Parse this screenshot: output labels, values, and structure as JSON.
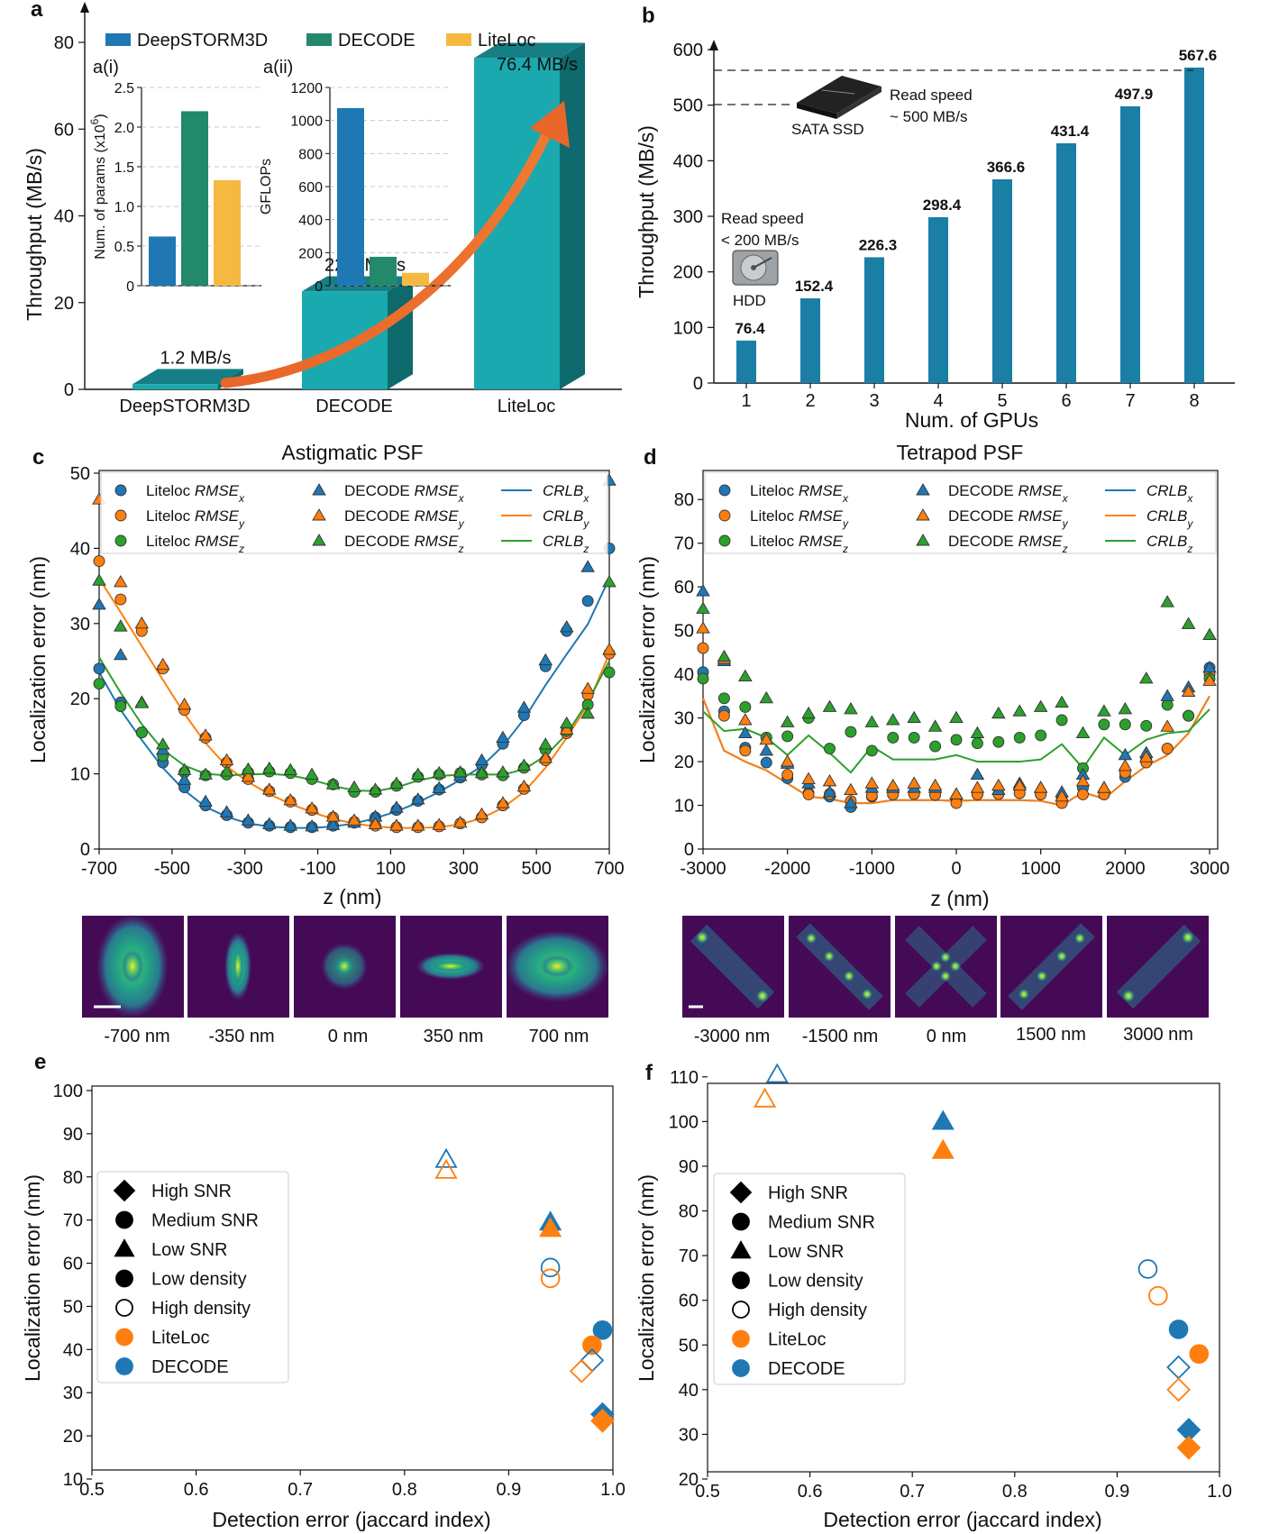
{
  "colors": {
    "blue": "#1f77b4",
    "orange": "#ff7f0e",
    "green": "#2ca02c",
    "teal": "#1aa9ae",
    "steel": "#1a7ea5",
    "dgreen": "#22896a",
    "yellow": "#f5b942",
    "arrow": "#e8662a"
  },
  "panel_labels": {
    "a": "a",
    "b": "b",
    "c": "c",
    "d": "d",
    "e": "e",
    "f": "f"
  },
  "chart_data": [
    {
      "id": "a",
      "type": "bar",
      "categories": [
        "DeepSTORM3D",
        "DECODE",
        "LiteLoc"
      ],
      "values": [
        1.2,
        22.6,
        76.4
      ],
      "value_labels": [
        "1.2 MB/s",
        "22.6 MB/s",
        "76.4 MB/s"
      ],
      "ylabel": "Throughput (MB/s)",
      "ylim": [
        0,
        80
      ],
      "yticks": [
        0,
        20,
        40,
        60,
        80
      ],
      "legend": [
        "DeepSTORM3D",
        "DECODE",
        "LiteLoc"
      ]
    },
    {
      "id": "a(i)",
      "type": "bar",
      "title": "a(i)",
      "ylabel": "Num. of params (x10",
      "ylabel_exp": "6",
      "ylabel_tail": ")",
      "values": [
        0.62,
        2.2,
        1.33
      ],
      "ylim": [
        0,
        2.5
      ],
      "yticks": [
        "0",
        "0.5",
        "1.0",
        "1.5",
        "2.0",
        "2.5"
      ]
    },
    {
      "id": "a(ii)",
      "type": "bar",
      "title": "a(ii)",
      "ylabel": "GFLOPs",
      "values": [
        1075,
        175,
        78
      ],
      "ylim": [
        0,
        1200
      ],
      "yticks": [
        "0",
        "200",
        "400",
        "600",
        "800",
        "1000",
        "1200"
      ]
    },
    {
      "id": "b",
      "type": "bar",
      "categories": [
        "1",
        "2",
        "3",
        "4",
        "5",
        "6",
        "7",
        "8"
      ],
      "values": [
        76.4,
        152.4,
        226.3,
        298.4,
        366.6,
        431.4,
        497.9,
        567.6
      ],
      "value_labels": [
        "76.4",
        "152.4",
        "226.3",
        "298.4",
        "366.6",
        "431.4",
        "497.9",
        "567.6"
      ],
      "xlabel": "Num. of GPUs",
      "ylabel": "Throughput (MB/s)",
      "ylim": [
        0,
        600
      ],
      "yticks": [
        0,
        100,
        200,
        300,
        400,
        500,
        600
      ],
      "annotations": {
        "ssd_speed": [
          "Read speed",
          "~ 500 MB/s"
        ],
        "ssd_name": "SATA SSD",
        "hdd_speed": [
          "Read speed",
          "< 200 MB/s"
        ],
        "hdd_name": "HDD"
      }
    },
    {
      "id": "c",
      "type": "line",
      "title": "Astigmatic PSF",
      "xlabel": "z (nm)",
      "ylabel": "Localization error (nm)",
      "xlim": [
        -700,
        700
      ],
      "ylim": [
        0,
        50
      ],
      "xticks": [
        -700,
        -500,
        -300,
        -100,
        100,
        300,
        500,
        700
      ],
      "yticks": [
        0,
        10,
        20,
        30,
        40,
        50
      ],
      "legend": [
        "Liteloc RMSE",
        "Liteloc RMSE",
        "Liteloc RMSE",
        "DECODE RMSE",
        "DECODE RMSE",
        "DECODE RMSE",
        "CRLB",
        "CRLB",
        "CRLB"
      ],
      "legend_sub": [
        "x",
        "y",
        "z",
        "x",
        "y",
        "z",
        "x",
        "y",
        "z"
      ],
      "x": [
        -700,
        -641,
        -583,
        -525,
        -466,
        -408,
        -350,
        -291,
        -233,
        -175,
        -116,
        -58,
        0,
        58,
        116,
        175,
        233,
        291,
        350,
        408,
        466,
        525,
        583,
        641,
        700
      ],
      "series": [
        {
          "values": [
            24,
            19.5,
            15.5,
            11.5,
            8.2,
            5.8,
            4.5,
            3.5,
            3.1,
            2.9,
            2.9,
            3.1,
            3.5,
            4.2,
            5.2,
            6.4,
            7.9,
            9.5,
            11.2,
            14,
            17.8,
            24.3,
            29,
            33,
            40
          ]
        },
        {
          "values": [
            38.3,
            33.2,
            29,
            24,
            18.5,
            14.8,
            11.5,
            9.3,
            7.7,
            6.3,
            5.2,
            4.2,
            3.6,
            3.1,
            2.9,
            2.9,
            3.0,
            3.4,
            4.2,
            5.8,
            8.0,
            11.8,
            15.4,
            20.5,
            26
          ]
        },
        {
          "values": [
            22,
            19,
            15.5,
            12.4,
            10.2,
            9.8,
            9.9,
            10.2,
            10.3,
            10.1,
            9.3,
            8.6,
            7.6,
            7.6,
            8.4,
            9.6,
            9.9,
            10.1,
            9.9,
            9.8,
            10.8,
            13.2,
            15.7,
            19.2,
            23.5
          ]
        },
        {
          "values": [
            32.5,
            25.8,
            19.5,
            13.2,
            9.2,
            6.3,
            4.9,
            3.8,
            3.3,
            3.1,
            3.0,
            3.2,
            3.5,
            4.3,
            5.5,
            6.6,
            8.1,
            9.7,
            11.8,
            14.8,
            18.8,
            25.1,
            29.5,
            37.5,
            49
          ]
        },
        {
          "values": [
            46.5,
            35.5,
            30,
            24.5,
            19.2,
            15.1,
            11.8,
            9.6,
            7.9,
            6.5,
            5.4,
            4.3,
            3.8,
            3.3,
            3.1,
            3.1,
            3.2,
            3.5,
            4.6,
            6.1,
            8.3,
            12.1,
            15.9,
            21.3,
            26.5
          ]
        },
        {
          "values": [
            35.7,
            29.6,
            19.4,
            13.9,
            10.5,
            9.9,
            10.3,
            10.6,
            10.7,
            10.5,
            9.9,
            8.6,
            8.2,
            7.9,
            8.7,
            9.9,
            10.1,
            10.2,
            10.1,
            10.2,
            11.1,
            13.9,
            16.7,
            18,
            35.5
          ]
        },
        {
          "values": [
            23.5,
            18.5,
            14.5,
            10.8,
            7.8,
            5.6,
            4.3,
            3.4,
            3.0,
            2.8,
            2.8,
            3.0,
            3.4,
            4.1,
            5.0,
            6.2,
            7.6,
            9.2,
            11,
            13.7,
            17.3,
            21.8,
            25.9,
            29.9,
            36
          ]
        },
        {
          "values": [
            36,
            31.5,
            27,
            22.5,
            18,
            14.1,
            11,
            8.9,
            7.3,
            6.0,
            4.9,
            4.0,
            3.4,
            3.0,
            2.8,
            2.8,
            2.9,
            3.3,
            4.1,
            5.5,
            7.6,
            10.8,
            14.8,
            19.2,
            26
          ]
        },
        {
          "values": [
            25.5,
            20.8,
            16.6,
            13.2,
            11.1,
            10,
            9.8,
            9.9,
            10,
            9.8,
            9.2,
            8.4,
            7.8,
            7.7,
            8.2,
            9.1,
            9.7,
            9.9,
            9.9,
            9.9,
            10.6,
            12.4,
            15.3,
            19.6,
            25
          ]
        }
      ]
    },
    {
      "id": "d",
      "type": "line",
      "title": "Tetrapod PSF",
      "xlabel": "z (nm)",
      "ylabel": "Localization error (nm)",
      "xlim": [
        -3000,
        3000
      ],
      "ylim": [
        0,
        85
      ],
      "xticks": [
        -3000,
        -2000,
        -1000,
        0,
        1000,
        2000,
        3000
      ],
      "yticks": [
        0,
        10,
        20,
        30,
        40,
        50,
        60,
        70,
        80
      ],
      "legend": [
        "Liteloc RMSE",
        "Liteloc RMSE",
        "Liteloc RMSE",
        "DECODE RMSE",
        "DECODE RMSE",
        "DECODE RMSE",
        "CRLB",
        "CRLB",
        "CRLB"
      ],
      "legend_sub": [
        "x",
        "y",
        "z",
        "x",
        "y",
        "z",
        "x",
        "y",
        "z"
      ],
      "x": [
        -3000,
        -2750,
        -2500,
        -2250,
        -2000,
        -1750,
        -1500,
        -1250,
        -1000,
        -750,
        -500,
        -250,
        0,
        250,
        500,
        750,
        1000,
        1250,
        1500,
        1750,
        2000,
        2250,
        2500,
        2750,
        3000
      ],
      "series": [
        {
          "values": [
            40.5,
            31.5,
            23.2,
            19.8,
            16.2,
            12.8,
            12,
            9.6,
            12,
            12.5,
            12.6,
            12.4,
            11.5,
            12.5,
            12.6,
            12.8,
            12.5,
            11.5,
            14,
            12.5,
            16.5,
            20.5,
            23,
            30.5,
            41.5
          ]
        },
        {
          "values": [
            46,
            30.5,
            22.5,
            25.5,
            17,
            12.5,
            12.6,
            11,
            12.2,
            12.5,
            12.6,
            12.4,
            10.5,
            12.5,
            12.6,
            12.8,
            12.5,
            10.5,
            12.5,
            12.5,
            17.5,
            19.8,
            23,
            30.5,
            40
          ]
        },
        {
          "values": [
            39,
            34.5,
            32.5,
            25.5,
            25.8,
            30,
            23,
            26.8,
            22.5,
            25.5,
            25.5,
            23.5,
            25,
            24.2,
            24.5,
            25.5,
            26,
            29.5,
            18.5,
            28.5,
            28.5,
            28.2,
            33,
            30.5,
            39
          ]
        },
        {
          "values": [
            59,
            43,
            26.5,
            22.5,
            19.5,
            15,
            13,
            10.5,
            14,
            14,
            14,
            14,
            12.5,
            17,
            13.5,
            15,
            14,
            13,
            17,
            14,
            21.5,
            22,
            35,
            37,
            41.5
          ]
        },
        {
          "values": [
            50.5,
            43.5,
            29.5,
            25,
            20,
            16,
            15.5,
            13.5,
            15,
            14.5,
            15,
            14.5,
            12.5,
            14,
            14.5,
            14.5,
            14,
            12,
            15.5,
            14,
            19,
            21,
            28,
            36,
            38.5
          ]
        },
        {
          "values": [
            55,
            44,
            39.5,
            34.5,
            29,
            31,
            32.5,
            32,
            29,
            29.5,
            30,
            28,
            30,
            26.5,
            31,
            31.5,
            32.5,
            33.5,
            26.5,
            31.5,
            32,
            39,
            56.5,
            51.5,
            49
          ]
        },
        {
          "values": [
            34.5,
            22.5,
            20,
            18,
            15,
            12,
            11.5,
            10.5,
            10.5,
            11.2,
            11.2,
            11.2,
            11,
            11.2,
            11.2,
            11.2,
            11,
            10,
            13,
            11.5,
            15.5,
            19,
            21.5,
            26.5,
            35
          ]
        },
        {
          "values": [
            34.5,
            22.5,
            20,
            18,
            15,
            12,
            11.5,
            10.5,
            10.5,
            11.2,
            11.2,
            11.2,
            11,
            11.2,
            11.2,
            11.2,
            11,
            10,
            13,
            11.5,
            15.5,
            19,
            21.5,
            26.5,
            35
          ]
        },
        {
          "values": [
            31.5,
            27,
            27.5,
            25.5,
            21.5,
            26,
            22,
            17.5,
            23.5,
            20.5,
            20.5,
            20.5,
            21.5,
            20,
            20,
            20,
            20.5,
            24,
            18.5,
            25.5,
            21.5,
            25,
            26.5,
            27,
            32
          ]
        }
      ],
      "psf_labels": [
        "-3000 nm",
        "-1500 nm",
        "0 nm",
        "1500 nm",
        "3000 nm"
      ]
    },
    {
      "id": "e",
      "type": "scatter",
      "xlabel": "Detection error (jaccard index)",
      "ylabel": "Localization error (nm)",
      "xlim": [
        0.5,
        1.0
      ],
      "ylim": [
        10,
        100
      ],
      "xticks": [
        "0.5",
        "0.6",
        "0.7",
        "0.8",
        "0.9",
        "1.0"
      ],
      "yticks": [
        "10",
        "20",
        "30",
        "40",
        "50",
        "60",
        "70",
        "80",
        "90",
        "100"
      ],
      "legend": [
        "High SNR",
        "Medium SNR",
        "Low SNR",
        "Low density",
        "High density",
        "LiteLoc",
        "DECODE"
      ],
      "points": [
        {
          "x": 0.84,
          "y": 84,
          "shape": "triangle",
          "fill": false,
          "model": "DECODE"
        },
        {
          "x": 0.84,
          "y": 81.5,
          "shape": "triangle",
          "fill": false,
          "model": "LiteLoc"
        },
        {
          "x": 0.94,
          "y": 69.5,
          "shape": "triangle",
          "fill": true,
          "model": "DECODE"
        },
        {
          "x": 0.94,
          "y": 68,
          "shape": "triangle",
          "fill": true,
          "model": "LiteLoc"
        },
        {
          "x": 0.94,
          "y": 59,
          "shape": "circle",
          "fill": false,
          "model": "DECODE"
        },
        {
          "x": 0.94,
          "y": 56.5,
          "shape": "circle",
          "fill": false,
          "model": "LiteLoc"
        },
        {
          "x": 0.99,
          "y": 44.5,
          "shape": "circle",
          "fill": true,
          "model": "DECODE"
        },
        {
          "x": 0.98,
          "y": 41,
          "shape": "circle",
          "fill": true,
          "model": "LiteLoc"
        },
        {
          "x": 0.98,
          "y": 37.5,
          "shape": "diamond",
          "fill": false,
          "model": "DECODE"
        },
        {
          "x": 0.97,
          "y": 35,
          "shape": "diamond",
          "fill": false,
          "model": "LiteLoc"
        },
        {
          "x": 0.99,
          "y": 25,
          "shape": "diamond",
          "fill": true,
          "model": "DECODE"
        },
        {
          "x": 0.99,
          "y": 23.5,
          "shape": "diamond",
          "fill": true,
          "model": "LiteLoc"
        }
      ]
    },
    {
      "id": "f",
      "type": "scatter",
      "xlabel": "Detection error (jaccard index)",
      "ylabel": "Localization error (nm)",
      "xlim": [
        0.5,
        1.0
      ],
      "ylim": [
        20,
        115
      ],
      "xticks": [
        "0.5",
        "0.6",
        "0.7",
        "0.8",
        "0.9",
        "1.0"
      ],
      "yticks": [
        "20",
        "30",
        "40",
        "50",
        "60",
        "70",
        "80",
        "90",
        "100",
        "110"
      ],
      "legend": [
        "High SNR",
        "Medium SNR",
        "Low SNR",
        "Low density",
        "High density",
        "LiteLoc",
        "DECODE"
      ],
      "points": [
        {
          "x": 0.568,
          "y": 110.5,
          "shape": "triangle",
          "fill": false,
          "model": "DECODE"
        },
        {
          "x": 0.556,
          "y": 105,
          "shape": "triangle",
          "fill": false,
          "model": "LiteLoc"
        },
        {
          "x": 0.73,
          "y": 100,
          "shape": "triangle",
          "fill": true,
          "model": "DECODE"
        },
        {
          "x": 0.73,
          "y": 93.5,
          "shape": "triangle",
          "fill": true,
          "model": "LiteLoc"
        },
        {
          "x": 0.93,
          "y": 67,
          "shape": "circle",
          "fill": false,
          "model": "DECODE"
        },
        {
          "x": 0.94,
          "y": 61,
          "shape": "circle",
          "fill": false,
          "model": "LiteLoc"
        },
        {
          "x": 0.96,
          "y": 53.5,
          "shape": "circle",
          "fill": true,
          "model": "DECODE"
        },
        {
          "x": 0.98,
          "y": 48,
          "shape": "circle",
          "fill": true,
          "model": "LiteLoc"
        },
        {
          "x": 0.96,
          "y": 45,
          "shape": "diamond",
          "fill": false,
          "model": "DECODE"
        },
        {
          "x": 0.96,
          "y": 40,
          "shape": "diamond",
          "fill": false,
          "model": "LiteLoc"
        },
        {
          "x": 0.97,
          "y": 31,
          "shape": "diamond",
          "fill": true,
          "model": "DECODE"
        },
        {
          "x": 0.97,
          "y": 27,
          "shape": "diamond",
          "fill": true,
          "model": "LiteLoc"
        }
      ]
    }
  ],
  "psf_c_labels": [
    "-700 nm",
    "-350 nm",
    "0 nm",
    "350 nm",
    "700 nm"
  ]
}
